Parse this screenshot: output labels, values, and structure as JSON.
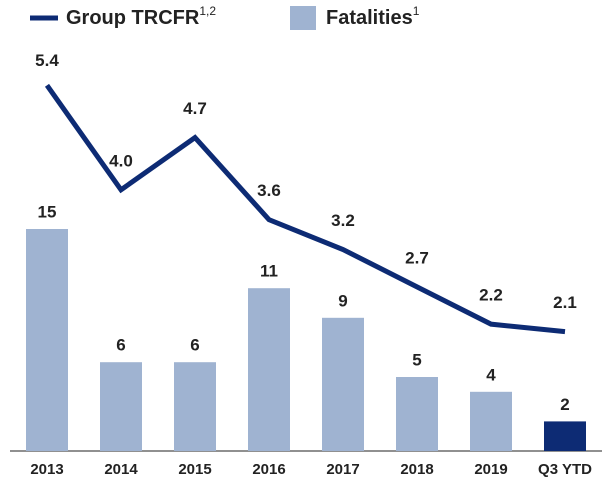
{
  "chart_data": {
    "type": "bar_line",
    "categories": [
      "2013",
      "2014",
      "2015",
      "2016",
      "2017",
      "2018",
      "2019",
      "Q3 YTD"
    ],
    "series": [
      {
        "name": "Group TRCFR",
        "superscript": "1,2",
        "type": "line",
        "axis": "y2",
        "color": "#0d2b74",
        "values": [
          5.4,
          4.0,
          4.7,
          3.6,
          3.2,
          2.7,
          2.2,
          2.1
        ],
        "value_labels": [
          "5.4",
          "4.0",
          "4.7",
          "3.6",
          "3.2",
          "2.7",
          "2.2",
          "2.1"
        ]
      },
      {
        "name": "Fatalities",
        "superscript": "1",
        "type": "bar",
        "color": "#9fb3d1",
        "colors": [
          "#9fb3d1",
          "#9fb3d1",
          "#9fb3d1",
          "#9fb3d1",
          "#9fb3d1",
          "#9fb3d1",
          "#9fb3d1",
          "#0d2b74"
        ],
        "values": [
          15,
          6,
          6,
          11,
          9,
          5,
          4,
          2
        ]
      }
    ],
    "ylim": [
      0,
      30
    ],
    "y2lim": [
      0.5,
      6.45
    ]
  }
}
